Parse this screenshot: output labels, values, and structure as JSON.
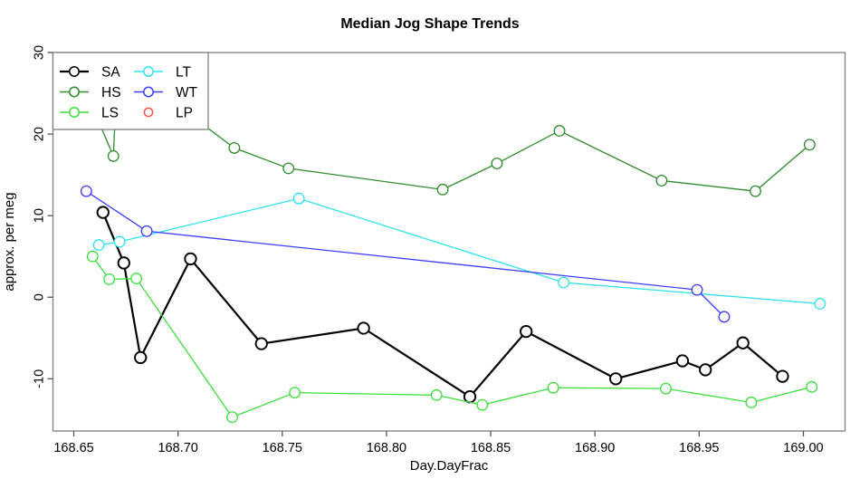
{
  "chart_data": {
    "type": "line",
    "title": "Median Jog Shape Trends",
    "xlabel": "Day.DayFrac",
    "ylabel": "approx. per meg",
    "x_range": [
      168.64,
      169.02
    ],
    "y_range": [
      -16.4,
      30
    ],
    "x_ticks": [
      {
        "value": 168.65,
        "label": "168.65"
      },
      {
        "value": 168.7,
        "label": "168.70"
      },
      {
        "value": 168.75,
        "label": "168.75"
      },
      {
        "value": 168.8,
        "label": "168.80"
      },
      {
        "value": 168.85,
        "label": "168.85"
      },
      {
        "value": 168.9,
        "label": "168.90"
      },
      {
        "value": 168.95,
        "label": "168.95"
      },
      {
        "value": 169.0,
        "label": "169.00"
      }
    ],
    "y_ticks": [
      {
        "value": -10,
        "label": "-10"
      },
      {
        "value": 0,
        "label": "0"
      },
      {
        "value": 10,
        "label": "10"
      },
      {
        "value": 20,
        "label": "20"
      },
      {
        "value": 30,
        "label": "30"
      }
    ],
    "series": [
      {
        "name": "SA",
        "color": "#000000",
        "line_width": 2.2,
        "marker_radius": 6.2,
        "marker_stroke": 1.9,
        "has_line": true,
        "points": [
          [
            168.664,
            10.4
          ],
          [
            168.674,
            4.2
          ],
          [
            168.682,
            -7.4
          ],
          [
            168.706,
            4.7
          ],
          [
            168.74,
            -5.7
          ],
          [
            168.789,
            -3.8
          ],
          [
            168.84,
            -12.2
          ],
          [
            168.867,
            -4.2
          ],
          [
            168.91,
            -10.0
          ],
          [
            168.942,
            -7.8
          ],
          [
            168.953,
            -8.9
          ],
          [
            168.971,
            -5.6
          ],
          [
            168.99,
            -9.7
          ]
        ]
      },
      {
        "name": "HS",
        "color": "#2e8b2e",
        "line_width": 1.3,
        "marker_radius": 5.8,
        "marker_stroke": 1.3,
        "has_line": true,
        "points": [
          [
            168.662,
            21.5
          ],
          [
            168.669,
            17.3
          ],
          [
            168.671,
            29.0
          ],
          [
            168.727,
            18.3
          ],
          [
            168.753,
            15.8
          ],
          [
            168.827,
            13.2
          ],
          [
            168.853,
            16.4
          ],
          [
            168.883,
            20.4
          ],
          [
            168.932,
            14.3
          ],
          [
            168.977,
            13.0
          ],
          [
            169.003,
            18.7
          ]
        ]
      },
      {
        "name": "LS",
        "color": "#3ce03c",
        "line_width": 1.3,
        "marker_radius": 5.8,
        "marker_stroke": 1.3,
        "has_line": true,
        "points": [
          [
            168.659,
            5.0
          ],
          [
            168.667,
            2.2
          ],
          [
            168.68,
            2.3
          ],
          [
            168.726,
            -14.7
          ],
          [
            168.756,
            -11.7
          ],
          [
            168.824,
            -12.0
          ],
          [
            168.846,
            -13.2
          ],
          [
            168.88,
            -11.1
          ],
          [
            168.934,
            -11.2
          ],
          [
            168.975,
            -12.9
          ],
          [
            169.004,
            -11.0
          ]
        ]
      },
      {
        "name": "LT",
        "color": "#2fe2ee",
        "line_width": 1.3,
        "marker_radius": 5.8,
        "marker_stroke": 1.3,
        "has_line": true,
        "points": [
          [
            168.662,
            6.4
          ],
          [
            168.672,
            6.8
          ],
          [
            168.758,
            12.1
          ],
          [
            168.885,
            1.8
          ],
          [
            169.008,
            -0.8
          ]
        ]
      },
      {
        "name": "WT",
        "color": "#3d3dff",
        "line_width": 1.3,
        "marker_radius": 5.8,
        "marker_stroke": 1.3,
        "has_line": true,
        "points": [
          [
            168.656,
            13.0
          ],
          [
            168.685,
            8.1
          ],
          [
            168.949,
            0.9
          ],
          [
            168.962,
            -2.4
          ]
        ]
      },
      {
        "name": "LP",
        "color": "#ff5050",
        "line_width": 1.3,
        "marker_radius": 4.6,
        "marker_stroke": 1.3,
        "has_line": false,
        "points": []
      }
    ],
    "legend": {
      "position": "top-left",
      "entries_column_major": [
        "SA",
        "HS",
        "LS",
        "LT",
        "WT",
        "LP"
      ]
    },
    "grid": false,
    "plot_box_color": "#808080",
    "tick_color": "#555555"
  }
}
